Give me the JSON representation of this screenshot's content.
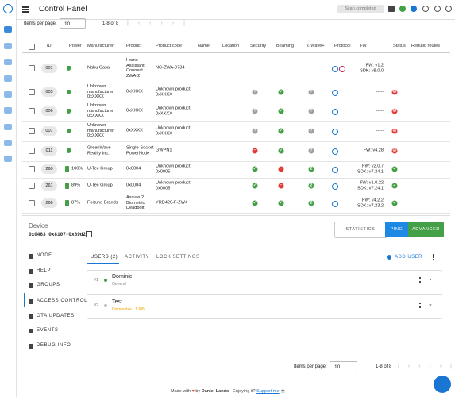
{
  "header": {
    "title": "Control Panel",
    "status": "Scan completed"
  },
  "pagination_top": {
    "label": "Items per page:",
    "value": "10",
    "range": "1-8 of 8"
  },
  "table": {
    "columns": [
      "ID",
      "Power",
      "Manufacturer",
      "Product",
      "Product code",
      "Name",
      "Location",
      "Security",
      "Beaming",
      "Z-Wave+",
      "Protocol",
      "FW",
      "Status",
      "Rebuild routes"
    ],
    "rows": [
      {
        "id": "001",
        "manufacturer": "Nabu Casa",
        "product": "Home Assistant Connect ZWA-2",
        "code": "NC-ZWA-9734",
        "fw": [
          "FW: v1.2",
          "SDK: v8.0.0"
        ]
      },
      {
        "id": "005",
        "manufacturer": "Unknown manufacturer 0xXXXX",
        "product": "0xXXXX",
        "code": "Unknown product 0xXXXX",
        "fw": [
          "-----"
        ]
      },
      {
        "id": "006",
        "manufacturer": "Unknown manufacturer 0xXXXX",
        "product": "0xXXXX",
        "code": "Unknown product 0xXXXX",
        "fw": [
          "-----"
        ]
      },
      {
        "id": "007",
        "manufacturer": "Unknown manufacturer 0xXXXX",
        "product": "0xXXXX",
        "code": "Unknown product 0xXXXX",
        "fw": [
          "-----"
        ]
      },
      {
        "id": "011",
        "manufacturer": "GreenWave Reality Inc.",
        "product": "Single-Socket PowerNode",
        "code": "GWPN1",
        "fw": [
          "FW: v4.28"
        ]
      },
      {
        "id": "260",
        "power": "100%",
        "manufacturer": "U-Tec Group",
        "product": "0x0004",
        "code": "Unknown product 0x0005",
        "zwave_plus": "2",
        "fw": [
          "FW: v2.0.7",
          "SDK: v7.24.1"
        ]
      },
      {
        "id": "261",
        "power": "89%",
        "manufacturer": "U-Tec Group",
        "product": "0x0004",
        "code": "Unknown product 0x0005",
        "zwave_plus": "2",
        "fw": [
          "FW: v1.0.22",
          "SDK: v7.24.1"
        ]
      },
      {
        "id": "266",
        "power": "87%",
        "manufacturer": "Fortune Brands",
        "product": "Assure 2 Biometric Deadbolt",
        "code": "YRD420-F-ZW4",
        "zwave_plus": "2",
        "fw": [
          "FW: v4.2.2",
          "SDK: v7.23.2"
        ]
      }
    ]
  },
  "device": {
    "label": "Device",
    "id": "0x0463 0x8107-0x89d2",
    "buttons": [
      "STATISTICS",
      "PING",
      "ADVANCED"
    ]
  },
  "menu": [
    "NODE",
    "HELP",
    "GROUPS",
    "ACCESS CONTROL",
    "OTA UPDATES",
    "EVENTS",
    "DEBUG INFO"
  ],
  "tabs": [
    "USERS (2)",
    "ACTIVITY",
    "LOCK SETTINGS"
  ],
  "add_user": "ADD USER",
  "users": [
    {
      "number": "#1",
      "name": "Dominic",
      "type": "General"
    },
    {
      "number": "#2",
      "name": "Test",
      "type": "Disposable · 1 PIN"
    }
  ],
  "pagination_bottom": {
    "label": "Items per page:",
    "value": "10",
    "range": "1-8 of 8"
  },
  "footer": {
    "made": "Made with",
    "by": "by",
    "author": "Daniel Lando",
    "enjoy": "- Enjoying it?",
    "support": "Support me"
  }
}
